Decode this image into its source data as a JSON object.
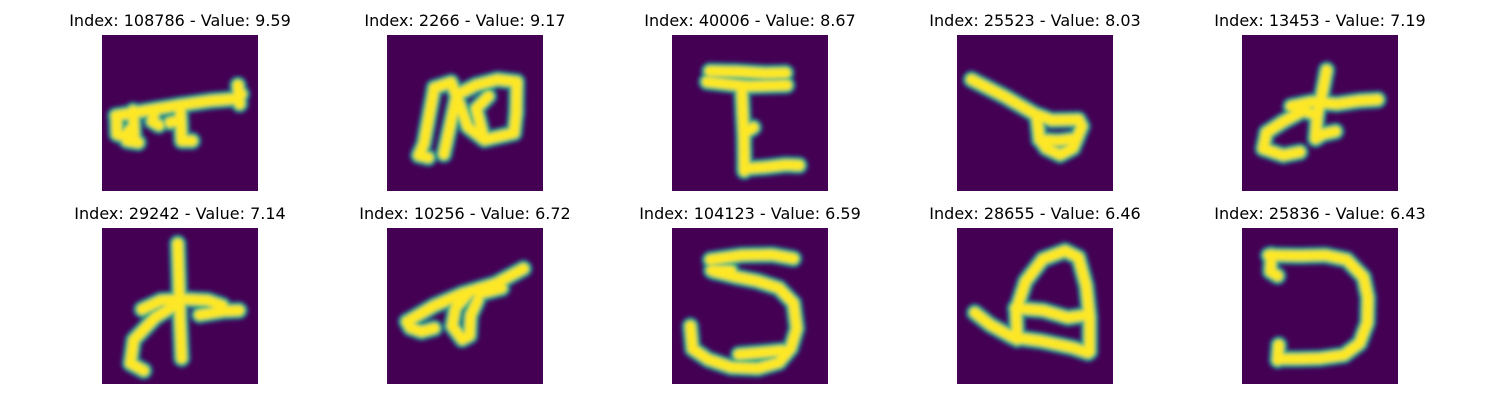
{
  "colors": {
    "background": "#440154",
    "stroke_core": "#fde725",
    "stroke_edge": "#35b779",
    "stroke_halo": "#31688e"
  },
  "panels": [
    {
      "title": "Index: 108786 - Value: 9.59",
      "index": 108786,
      "value": 9.59,
      "glyph_icon": "handwritten-character"
    },
    {
      "title": "Index: 2266 - Value: 9.17",
      "index": 2266,
      "value": 9.17,
      "glyph_icon": "handwritten-character"
    },
    {
      "title": "Index: 40006 - Value: 8.67",
      "index": 40006,
      "value": 8.67,
      "glyph_icon": "handwritten-character"
    },
    {
      "title": "Index: 25523 - Value: 8.03",
      "index": 25523,
      "value": 8.03,
      "glyph_icon": "handwritten-character"
    },
    {
      "title": "Index: 13453 - Value: 7.19",
      "index": 13453,
      "value": 7.19,
      "glyph_icon": "handwritten-character"
    },
    {
      "title": "Index: 29242 - Value: 7.14",
      "index": 29242,
      "value": 7.14,
      "glyph_icon": "handwritten-character"
    },
    {
      "title": "Index: 10256 - Value: 6.72",
      "index": 10256,
      "value": 6.72,
      "glyph_icon": "handwritten-character"
    },
    {
      "title": "Index: 104123 - Value: 6.59",
      "index": 104123,
      "value": 6.59,
      "glyph_icon": "handwritten-character"
    },
    {
      "title": "Index: 28655 - Value: 6.46",
      "index": 28655,
      "value": 6.46,
      "glyph_icon": "handwritten-character"
    },
    {
      "title": "Index: 25836 - Value: 6.43",
      "index": 25836,
      "value": 6.43,
      "glyph_icon": "handwritten-character"
    }
  ]
}
